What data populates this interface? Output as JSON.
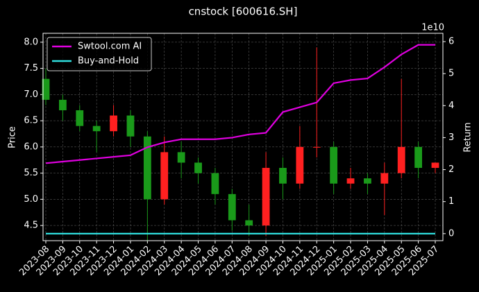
{
  "chart_data": {
    "type": "candlestick",
    "title": "cnstock [600616.SH]",
    "y_label": "Price",
    "y2_label": "Return",
    "y2_offset_label": "1e10",
    "x": [
      "2023-08",
      "2023-09",
      "2023-10",
      "2023-11",
      "2023-12",
      "2024-01",
      "2024-02",
      "2024-03",
      "2024-04",
      "2024-05",
      "2024-06",
      "2024-07",
      "2024-08",
      "2024-09",
      "2024-10",
      "2024-11",
      "2024-12",
      "2025-01",
      "2025-02",
      "2025-03",
      "2025-04",
      "2025-05",
      "2025-06",
      "2025-07"
    ],
    "open": [
      7.3,
      6.9,
      6.7,
      6.4,
      6.3,
      6.6,
      6.2,
      5.0,
      5.9,
      5.7,
      5.5,
      5.1,
      4.6,
      4.5,
      5.6,
      5.3,
      6.0,
      6.0,
      5.3,
      5.4,
      5.3,
      5.5,
      6.0,
      5.6
    ],
    "high": [
      7.5,
      7.0,
      6.8,
      6.5,
      6.8,
      6.7,
      6.3,
      6.2,
      6.1,
      5.8,
      5.6,
      5.2,
      4.9,
      5.9,
      5.8,
      6.4,
      7.9,
      6.1,
      5.6,
      5.5,
      5.7,
      7.3,
      6.1,
      5.7
    ],
    "low": [
      6.8,
      6.5,
      6.3,
      5.9,
      6.2,
      6.0,
      4.2,
      4.9,
      5.4,
      5.3,
      4.9,
      4.4,
      4.3,
      4.3,
      5.0,
      5.2,
      5.8,
      5.1,
      5.2,
      5.1,
      4.7,
      5.4,
      5.4,
      5.5
    ],
    "close": [
      6.9,
      6.7,
      6.4,
      6.3,
      6.6,
      6.2,
      5.0,
      5.9,
      5.7,
      5.5,
      5.1,
      4.6,
      4.5,
      5.6,
      5.3,
      6.0,
      6.0,
      5.3,
      5.4,
      5.3,
      5.5,
      6.0,
      5.6,
      5.7
    ],
    "up_color": "#ff2020",
    "down_color": "#1a9a1a",
    "series": [
      {
        "name": "Swtool.com AI",
        "color": "#e000e0",
        "axis": "y2",
        "values": [
          2.2,
          2.25,
          2.3,
          2.35,
          2.4,
          2.45,
          2.7,
          2.85,
          2.95,
          2.95,
          2.95,
          3.0,
          3.1,
          3.15,
          3.8,
          3.95,
          4.1,
          4.7,
          4.8,
          4.85,
          5.2,
          5.6,
          5.9,
          5.9
        ]
      },
      {
        "name": "Buy-and-Hold",
        "color": "#30e0e0",
        "axis": "y2",
        "values": [
          0,
          0,
          0,
          0,
          0,
          0,
          0,
          0,
          0,
          0,
          0,
          0,
          0,
          0,
          0,
          0,
          0,
          0,
          0,
          0,
          0,
          0,
          0,
          0
        ]
      }
    ],
    "xlim": [
      "2023-08",
      "2025-07"
    ],
    "xticks": [
      "2023-08",
      "2023-09",
      "2023-10",
      "2023-11",
      "2023-12",
      "2024-01",
      "2024-02",
      "2024-03",
      "2024-04",
      "2024-05",
      "2024-06",
      "2024-07",
      "2024-08",
      "2024-09",
      "2024-10",
      "2024-11",
      "2024-12",
      "2025-01",
      "2025-02",
      "2025-03",
      "2025-04",
      "2025-05",
      "2025-06",
      "2025-07"
    ],
    "ylim": [
      4.21,
      8.17
    ],
    "yticks": [
      4.5,
      5.0,
      5.5,
      6.0,
      6.5,
      7.0,
      7.5,
      8.0
    ],
    "y2lim": [
      -0.22,
      6.26
    ],
    "y2ticks": [
      0,
      1,
      2,
      3,
      4,
      5,
      6
    ],
    "grid": true,
    "legend": "upper-left"
  }
}
